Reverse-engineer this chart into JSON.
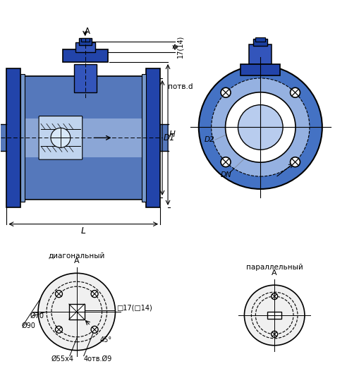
{
  "bg_color": "#ffffff",
  "lc": "#000000",
  "blue_dark": "#1a3fa0",
  "blue_mid": "#4472c4",
  "blue_light": "#b8ccee",
  "blue_body": "#5578bb",
  "blue_flange": "#2244aa",
  "blue_stem": "#3355bb",
  "blue_inner": "#7799cc",
  "gray_hatch": "#888888",
  "label_45": "45°",
  "label_d70": "Ø70",
  "label_d90": "Ø90",
  "label_d55x4": "Ø55x4",
  "label_4holes": "4отв.Ø9",
  "label_17": "□17(□14)",
  "label_H": "H",
  "label_D1": "D1",
  "label_L": "L",
  "label_A": "A",
  "label_17top": "17(14)",
  "label_D2": "D2",
  "label_DN": "DN",
  "label_potv": "потв.d",
  "label_diag": "диагональный",
  "label_paral": "параллельный"
}
